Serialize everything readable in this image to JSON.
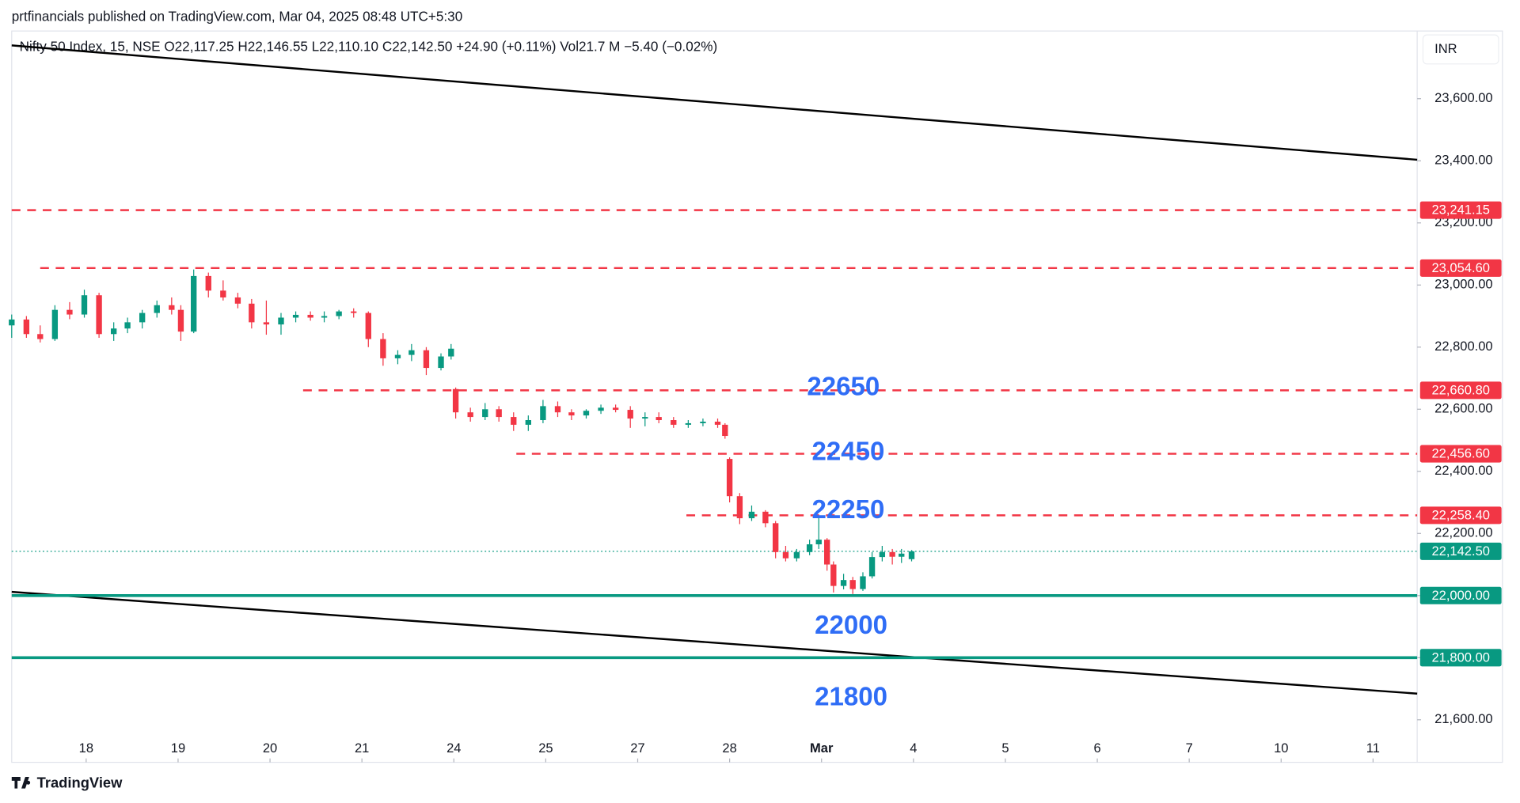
{
  "chart_data": {
    "type": "candlestick",
    "publisher": "prtfinancials published on TradingView.com, Mar 04, 2025 08:48 UTC+5:30",
    "legend": "Nifty 50 Index, 15, NSE  O22,117.25  H22,146.55  L22,110.10  C22,142.50  +24.90 (+0.11%)  Vol21.7 M  −5.40 (−0.02%)",
    "currency": "INR",
    "brand": "TradingView",
    "up_color": "#089981",
    "down_color": "#f23645",
    "xlim": [
      -0.81,
      14.48
    ],
    "ylim": [
      21463,
      23818
    ],
    "xticks": [
      {
        "value": 0,
        "label": "18"
      },
      {
        "value": 1,
        "label": "19"
      },
      {
        "value": 2,
        "label": "20"
      },
      {
        "value": 3,
        "label": "21"
      },
      {
        "value": 4,
        "label": "24"
      },
      {
        "value": 5,
        "label": "25"
      },
      {
        "value": 6,
        "label": "27"
      },
      {
        "value": 7,
        "label": "28"
      },
      {
        "value": 8,
        "label": "Mar"
      },
      {
        "value": 9,
        "label": "4"
      },
      {
        "value": 10,
        "label": "5"
      },
      {
        "value": 11,
        "label": "6"
      },
      {
        "value": 12,
        "label": "7"
      },
      {
        "value": 13,
        "label": "10"
      },
      {
        "value": 14,
        "label": "11"
      }
    ],
    "yticks": [
      {
        "value": 21600,
        "label": "21,600.00"
      },
      {
        "value": 21800,
        "label": "21,800.00"
      },
      {
        "value": 22000,
        "label": "22,000.00"
      },
      {
        "value": 22200,
        "label": "22,200.00"
      },
      {
        "value": 22400,
        "label": "22,400.00"
      },
      {
        "value": 22600,
        "label": "22,600.00"
      },
      {
        "value": 22800,
        "label": "22,800.00"
      },
      {
        "value": 23000,
        "label": "23,000.00"
      },
      {
        "value": 23200,
        "label": "23,200.00"
      },
      {
        "value": 23400,
        "label": "23,400.00"
      },
      {
        "value": 23600,
        "label": "23,600.00"
      }
    ],
    "x": [
      -0.81,
      -0.65,
      -0.5,
      -0.34,
      -0.18,
      -0.02,
      0.14,
      0.3,
      0.45,
      0.61,
      0.77,
      0.93,
      1.03,
      1.17,
      1.33,
      1.49,
      1.65,
      1.8,
      1.96,
      2.12,
      2.28,
      2.44,
      2.59,
      2.75,
      2.91,
      3.07,
      3.23,
      3.39,
      3.54,
      3.7,
      3.86,
      3.97,
      4.02,
      4.18,
      4.34,
      4.49,
      4.65,
      4.81,
      4.97,
      5.13,
      5.28,
      5.44,
      5.6,
      5.76,
      5.92,
      6.08,
      6.23,
      6.39,
      6.55,
      6.71,
      6.87,
      6.95,
      7.0,
      7.11,
      7.24,
      7.39,
      7.5,
      7.61,
      7.73,
      7.87,
      7.97,
      8.06,
      8.13,
      8.24,
      8.34,
      8.45,
      8.55,
      8.66,
      8.77,
      8.87,
      8.98
    ],
    "open": [
      22870,
      22889,
      22842,
      22826,
      22920,
      22905,
      22967,
      22842,
      22860,
      22880,
      22910,
      22935,
      22920,
      22850,
      23029,
      22982,
      22960,
      22940,
      22880,
      22873,
      22895,
      22904,
      22895,
      22900,
      22915,
      22910,
      22826,
      22764,
      22775,
      22790,
      22733,
      22770,
      22665,
      22590,
      22575,
      22600,
      22575,
      22550,
      22565,
      22610,
      22590,
      22580,
      22595,
      22605,
      22598,
      22570,
      22575,
      22565,
      22550,
      22555,
      22560,
      22550,
      22440,
      22320,
      22249,
      22270,
      22233,
      22140,
      22120,
      22140,
      22165,
      22180,
      22100,
      22031,
      22050,
      22021,
      22062,
      22124,
      22140,
      22125,
      22117.25
    ],
    "high": [
      22905,
      22900,
      22870,
      22935,
      22945,
      22985,
      22975,
      22880,
      22895,
      22920,
      22950,
      22960,
      22935,
      23050,
      23040,
      23015,
      22975,
      22955,
      22950,
      22910,
      22915,
      22915,
      22915,
      22920,
      22925,
      22915,
      22845,
      22790,
      22810,
      22800,
      22780,
      22810,
      22670,
      22605,
      22620,
      22610,
      22590,
      22580,
      22630,
      22625,
      22600,
      22600,
      22615,
      22615,
      22610,
      22590,
      22590,
      22575,
      22565,
      22570,
      22570,
      22555,
      22445,
      22330,
      22290,
      22275,
      22240,
      22160,
      22150,
      22180,
      22255,
      22185,
      22110,
      22070,
      22060,
      22075,
      22140,
      22160,
      22150,
      22150,
      22146.55
    ],
    "low": [
      22830,
      22830,
      22815,
      22820,
      22890,
      22895,
      22830,
      22820,
      22845,
      22860,
      22895,
      22905,
      22820,
      22845,
      22960,
      22950,
      22925,
      22860,
      22840,
      22840,
      22880,
      22885,
      22880,
      22890,
      22895,
      22800,
      22740,
      22745,
      22755,
      22710,
      22725,
      22760,
      22570,
      22560,
      22565,
      22560,
      22530,
      22530,
      22555,
      22575,
      22565,
      22570,
      22585,
      22590,
      22540,
      22545,
      22555,
      22540,
      22540,
      22545,
      22540,
      22505,
      22300,
      22230,
      22240,
      22220,
      22120,
      22110,
      22110,
      22130,
      22150,
      22080,
      22010,
      22020,
      22005,
      22015,
      22055,
      22110,
      22100,
      22105,
      22110.1
    ],
    "close": [
      22889,
      22842,
      22826,
      22920,
      22905,
      22967,
      22842,
      22860,
      22880,
      22910,
      22935,
      22920,
      22850,
      23029,
      22982,
      22960,
      22940,
      22880,
      22873,
      22895,
      22904,
      22895,
      22900,
      22915,
      22910,
      22826,
      22764,
      22775,
      22790,
      22733,
      22770,
      22795,
      22590,
      22575,
      22600,
      22575,
      22550,
      22565,
      22610,
      22590,
      22580,
      22595,
      22605,
      22598,
      22570,
      22575,
      22565,
      22550,
      22555,
      22560,
      22550,
      22514,
      22320,
      22249,
      22270,
      22233,
      22140,
      22120,
      22140,
      22165,
      22180,
      22100,
      22031,
      22050,
      22021,
      22062,
      22124,
      22140,
      22125,
      22135,
      22142.5
    ],
    "levels": [
      {
        "value": 23241.15,
        "label": "23,241.15",
        "color": "#f23645",
        "style": "dashed",
        "start": -0.81
      },
      {
        "value": 23054.6,
        "label": "23,054.60",
        "color": "#f23645",
        "style": "dashed",
        "start": -0.5
      },
      {
        "value": 22660.8,
        "label": "22,660.80",
        "color": "#f23645",
        "style": "dashed",
        "start": 2.36
      },
      {
        "value": 22456.6,
        "label": "22,456.60",
        "color": "#f23645",
        "style": "dashed",
        "start": 4.68
      },
      {
        "value": 22258.4,
        "label": "22,258.40",
        "color": "#f23645",
        "style": "dashed",
        "start": 6.53
      },
      {
        "value": 22142.5,
        "label": "22,142.50",
        "color": "#089981",
        "style": "dotted",
        "start": -0.81
      },
      {
        "value": 22000,
        "label": "22,000.00",
        "color": "#089981",
        "style": "solid",
        "start": -0.81
      },
      {
        "value": 21800,
        "label": "21,800.00",
        "color": "#089981",
        "style": "solid",
        "start": -0.81
      }
    ],
    "trendlines": [
      {
        "x": [
          -0.81,
          14.48
        ],
        "y": [
          23771.6,
          23403.4
        ]
      },
      {
        "x": [
          -0.81,
          14.48
        ],
        "y": [
          22011.9,
          21684.2
        ]
      }
    ],
    "annotations": [
      "22650",
      "22450",
      "22250",
      "22000",
      "21800"
    ]
  }
}
